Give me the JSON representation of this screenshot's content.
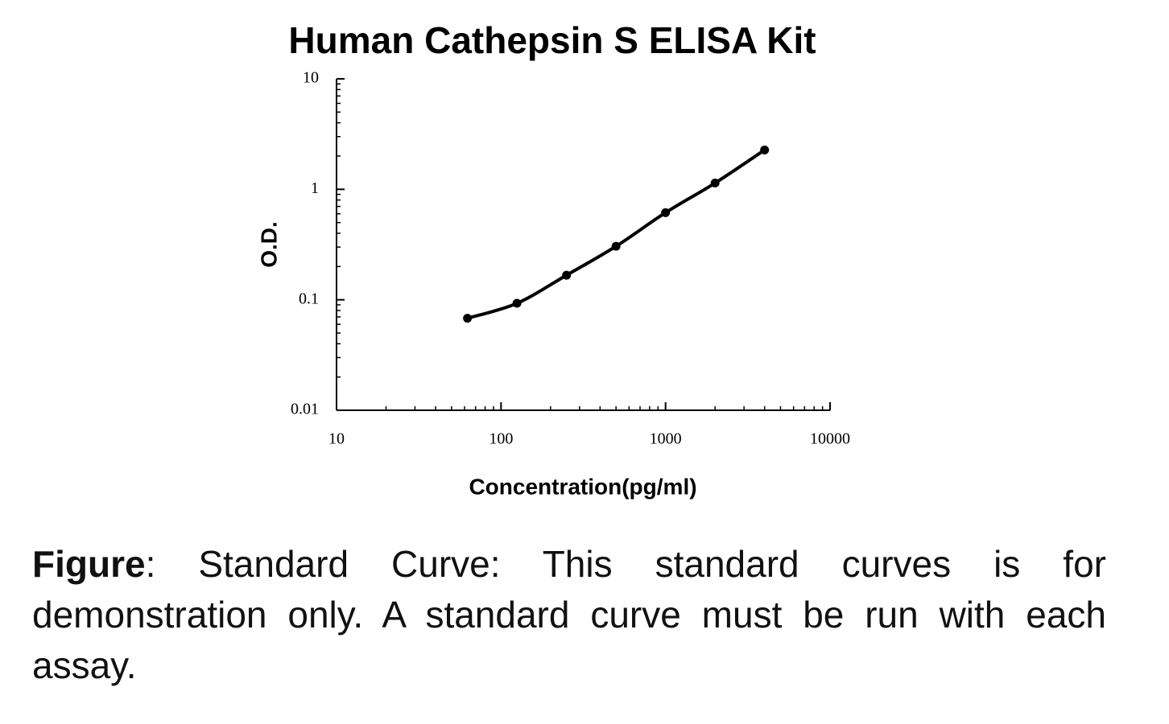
{
  "chart_data": {
    "type": "line",
    "title": "Human Cathepsin S ELISA Kit",
    "x_label": "Concentration(pg/ml)",
    "y_label": "O.D.",
    "x": [
      62.5,
      125,
      250,
      500,
      1000,
      2000,
      4000
    ],
    "values": [
      0.068,
      0.093,
      0.167,
      0.305,
      0.615,
      1.14,
      2.27
    ],
    "color": "#000000",
    "xscale": "log",
    "yscale": "log",
    "xlim": [
      10,
      10000
    ],
    "ylim": [
      0.01,
      10
    ],
    "xticks": [
      10,
      100,
      1000,
      10000
    ],
    "yticks": [
      0.01,
      0.1,
      1,
      10
    ],
    "grid": false,
    "caption": {
      "label": "Figure",
      "text": ": Standard Curve: This standard curves is for demonstration only. A standard curve must be run with each assay."
    }
  }
}
